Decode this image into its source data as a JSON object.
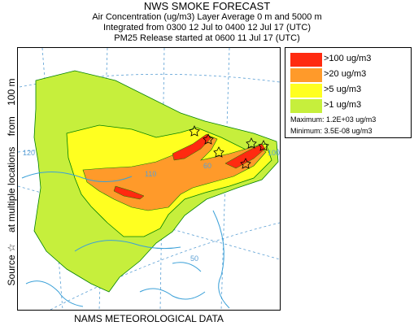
{
  "header": {
    "title": "NWS SMOKE FORECAST",
    "line2": "Air Concentration (ug/m3) Layer Average    0 m and  5000 m",
    "line3": "Integrated from 0300 12 Jul to 0400 12 Jul 17 (UTC)",
    "line4": "PM25 Release started at 0600 11 Jul 17 (UTC)"
  },
  "side_label": {
    "source": "Source ☆",
    "locations": "at multiple locations",
    "from": "from",
    "height": "100 m"
  },
  "legend": {
    "items": [
      {
        "label": ">100 ug/m3",
        "color": "#ff2a10"
      },
      {
        "label": ">20 ug/m3",
        "color": "#ff9a2a"
      },
      {
        "label": ">5 ug/m3",
        "color": "#ffff20"
      },
      {
        "label": ">1 ug/m3",
        "color": "#c6ef3c"
      }
    ],
    "maximum": "Maximum: 1.2E+03 ug/m3",
    "minimum": "Minimum: 3.5E-08 ug/m3"
  },
  "map": {
    "grid_labels": [
      "120",
      "110",
      "60",
      "100",
      "50"
    ],
    "colors": {
      "water": "#3aa0d8",
      "grid": "#5a9fd4",
      "contour": "#008000"
    }
  },
  "footer": {
    "text": "NAMS METEOROLOGICAL DATA"
  }
}
